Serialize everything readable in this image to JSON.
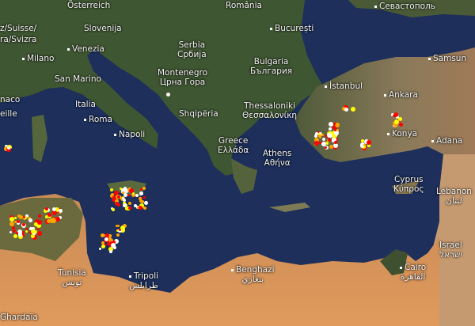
{
  "map": {
    "type": "satellite-lightning-map",
    "strike_colors": {
      "newest": "#ffffff",
      "recent": "#ffff00",
      "older": "#ffa500",
      "oldest": "#ff0000"
    },
    "labels": {
      "osterreich": "Österreich",
      "suisse1": "z/Suisse/",
      "suisse2": "ra/Svizra",
      "slovenija": "Slovenija",
      "venezia": "Venezia",
      "milano": "Milano",
      "san_marino": "San Marino",
      "monaco": "naco",
      "marseille": "eille",
      "italia": "Italia",
      "roma": "Roma",
      "napoli": "Napoli",
      "serbia": "Serbia",
      "serbia_local": "Србија",
      "montenegro": "Montenegro",
      "montenegro_local": "Црна Гора",
      "shqiperia": "Shqipëria",
      "greece": "Greece",
      "greece_local": "Ελλάδα",
      "athens": "Athens",
      "athens_local": "Αθήνα",
      "thessaloniki": "Thessaloniki",
      "thessaloniki_local": "Θεσσαλονίκη",
      "romania": "România",
      "bucuresti": "București",
      "bulgaria": "Bulgaria",
      "bulgaria_local": "България",
      "sevastopol": "Севастополь",
      "samsun": "Samsun",
      "istanbul": "İstanbul",
      "ankara": "Ankara",
      "konya": "Konya",
      "adana": "Adana",
      "cyprus": "Cyprus",
      "cyprus_local": "Κύπρος",
      "lebanon": "Lebanon",
      "lebanon_local": "لبنان",
      "israel": "Israel",
      "israel_local": "ישראל",
      "cairo": "Cairo",
      "cairo_local": "القاهرة",
      "benghazi": "Benghazi",
      "benghazi_local": "بنغازي",
      "tripoli": "Tripoli",
      "tripoli_local": "طرابلس",
      "tunisia": "Tunisia",
      "tunisia_local": "تونس",
      "ghardaia": "Ghardaïa"
    }
  }
}
